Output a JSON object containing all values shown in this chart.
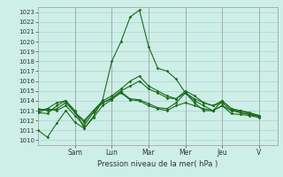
{
  "background_color": "#ceeee8",
  "grid_color": "#aad4cc",
  "line_color": "#1a6b1a",
  "marker_color": "#1a6b1a",
  "ylim": [
    1009.5,
    1023.5
  ],
  "yticks": [
    1010,
    1011,
    1012,
    1013,
    1014,
    1015,
    1016,
    1017,
    1018,
    1019,
    1020,
    1021,
    1022,
    1023
  ],
  "xlabel": "Pression niveau de la mer( hPa )",
  "day_labels": [
    "Sam",
    "Lun",
    "Mar",
    "Mer",
    "Jeu",
    "V"
  ],
  "day_tick_positions": [
    2,
    4,
    6,
    8,
    10,
    12
  ],
  "xlim": [
    0,
    13
  ],
  "lines": [
    {
      "x": [
        0.0,
        0.5,
        1.0,
        1.5,
        2.0,
        2.5,
        3.0,
        3.5,
        4.0,
        4.5,
        5.0,
        5.5,
        6.0,
        6.5,
        7.0,
        7.5,
        8.0,
        8.5,
        9.0,
        9.5,
        10.0,
        10.5,
        11.0,
        11.5,
        12.0
      ],
      "y": [
        1011.0,
        1010.3,
        1011.7,
        1013.0,
        1011.8,
        1011.2,
        1012.4,
        1014.1,
        1018.0,
        1020.0,
        1022.5,
        1023.2,
        1019.5,
        1017.3,
        1017.0,
        1016.2,
        1014.8,
        1013.8,
        1013.0,
        1013.0,
        1013.5,
        1012.7,
        1012.6,
        1012.5,
        1012.3
      ]
    },
    {
      "x": [
        0.0,
        0.5,
        1.0,
        1.5,
        2.0,
        2.5,
        3.0,
        3.5,
        4.0,
        4.5,
        5.0,
        5.5,
        6.0,
        6.5,
        7.0,
        7.5,
        8.0,
        8.5,
        9.0,
        9.5,
        10.0,
        10.5,
        11.0,
        11.5,
        12.0
      ],
      "y": [
        1012.8,
        1012.7,
        1013.5,
        1014.0,
        1012.8,
        1012.0,
        1013.0,
        1013.8,
        1014.2,
        1014.8,
        1014.1,
        1014.0,
        1013.5,
        1013.2,
        1013.0,
        1013.5,
        1013.8,
        1013.5,
        1013.2,
        1013.0,
        1013.5,
        1013.0,
        1013.0,
        1012.7,
        1012.5
      ]
    },
    {
      "x": [
        0.0,
        0.5,
        1.0,
        1.5,
        2.0,
        2.5,
        3.0,
        3.5,
        4.0,
        4.5,
        5.0,
        5.5,
        6.0,
        6.5,
        7.0,
        7.5,
        8.0,
        8.5,
        9.0,
        9.5,
        10.0,
        10.5,
        11.0,
        11.5,
        12.0
      ],
      "y": [
        1013.0,
        1013.2,
        1013.0,
        1013.5,
        1012.5,
        1011.5,
        1012.8,
        1013.8,
        1014.3,
        1015.0,
        1015.5,
        1016.0,
        1015.2,
        1014.8,
        1014.3,
        1014.2,
        1014.8,
        1014.2,
        1013.8,
        1013.5,
        1013.8,
        1013.0,
        1012.8,
        1012.6,
        1012.5
      ]
    },
    {
      "x": [
        0.0,
        0.5,
        1.0,
        1.5,
        2.0,
        2.5,
        3.0,
        3.5,
        4.0,
        4.5,
        5.0,
        5.5,
        6.0,
        6.5,
        7.0,
        7.5,
        8.0,
        8.5,
        9.0,
        9.5,
        10.0,
        10.5,
        11.0,
        11.5,
        12.0
      ],
      "y": [
        1013.2,
        1013.0,
        1013.2,
        1013.8,
        1012.8,
        1011.8,
        1013.0,
        1014.0,
        1014.5,
        1015.2,
        1016.0,
        1016.5,
        1015.5,
        1015.0,
        1014.5,
        1014.2,
        1015.0,
        1014.5,
        1013.8,
        1013.5,
        1014.0,
        1013.2,
        1013.0,
        1012.8,
        1012.5
      ]
    },
    {
      "x": [
        0.0,
        0.5,
        1.0,
        1.5,
        2.0,
        2.5,
        3.0,
        3.5,
        4.0,
        4.5,
        5.0,
        5.5,
        6.0,
        6.5,
        7.0,
        7.5,
        8.0,
        8.5,
        9.0,
        9.5,
        10.0,
        10.5,
        11.0,
        11.5,
        12.0
      ],
      "y": [
        1012.8,
        1013.2,
        1013.8,
        1014.0,
        1013.0,
        1011.2,
        1012.3,
        1013.5,
        1014.1,
        1014.9,
        1014.2,
        1014.1,
        1013.7,
        1013.3,
        1013.2,
        1013.8,
        1014.8,
        1014.0,
        1013.5,
        1013.0,
        1014.0,
        1013.2,
        1012.8,
        1012.6,
        1012.4
      ]
    }
  ]
}
